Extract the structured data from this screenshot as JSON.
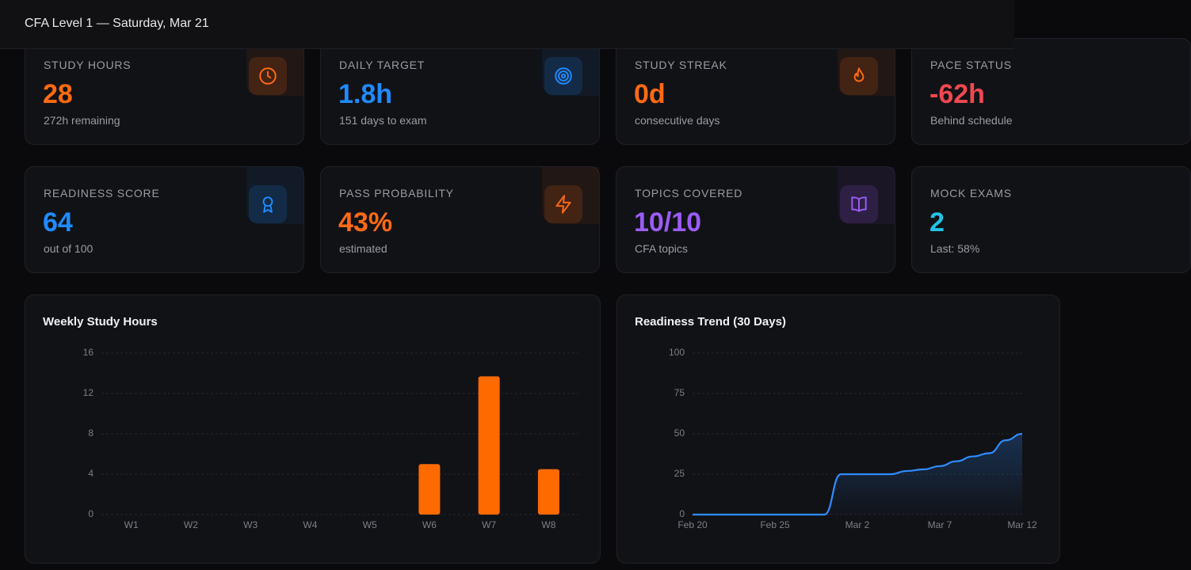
{
  "header": {
    "title": "CFA Level 1 — Saturday, Mar 21"
  },
  "cards": [
    {
      "label": "STUDY HOURS",
      "value": "28",
      "note": "272h remaining",
      "color": "#ff6a13"
    },
    {
      "label": "DAILY TARGET",
      "value": "1.8h",
      "note": "151 days to exam",
      "color": "#1f8bff"
    },
    {
      "label": "STUDY STREAK",
      "value": "0d",
      "note": "consecutive days",
      "color": "#ff6a13"
    },
    {
      "label": "PACE STATUS",
      "value": "-62h",
      "note": "Behind schedule",
      "color": "#f0484f"
    },
    {
      "label": "READINESS SCORE",
      "value": "64",
      "note": "out of 100",
      "color": "#1f8bff"
    },
    {
      "label": "PASS PROBABILITY",
      "value": "43%",
      "note": "estimated",
      "color": "#ff6a13"
    },
    {
      "label": "TOPICS COVERED",
      "value": "10/10",
      "note": "CFA topics",
      "color": "#9b5cf6"
    },
    {
      "label": "MOCK EXAMS",
      "value": "2",
      "note": "Last: 58%",
      "color": "#22c3e6"
    }
  ],
  "chart_data": [
    {
      "type": "bar",
      "title": "Weekly Study Hours",
      "categories": [
        "W1",
        "W2",
        "W3",
        "W4",
        "W5",
        "W6",
        "W7",
        "W8"
      ],
      "values": [
        0,
        0,
        0,
        0,
        0,
        5,
        13.7,
        4.5
      ],
      "color": "#ff6a00",
      "ylim": [
        0,
        16
      ],
      "yticks": [
        0,
        4,
        8,
        12,
        16
      ],
      "grid": true
    },
    {
      "type": "line",
      "title": "Readiness Trend (30 Days)",
      "x": [
        "Feb 20",
        "Feb 21",
        "Feb 22",
        "Feb 23",
        "Feb 24",
        "Feb 25",
        "Feb 26",
        "Feb 27",
        "Feb 28",
        "Mar 1",
        "Mar 2",
        "Mar 3",
        "Mar 4",
        "Mar 5",
        "Mar 6",
        "Mar 7",
        "Mar 8",
        "Mar 9",
        "Mar 10",
        "Mar 11",
        "Mar 12"
      ],
      "values": [
        0,
        0,
        0,
        0,
        0,
        0,
        0,
        0,
        0,
        25,
        25,
        25,
        25,
        27,
        28,
        30,
        33,
        36,
        38,
        46,
        50
      ],
      "color": "#2f8cff",
      "ylim": [
        0,
        100
      ],
      "yticks": [
        0,
        25,
        50,
        75,
        100
      ],
      "xticks": [
        "Feb 20",
        "Feb 25",
        "Mar 2",
        "Mar 7",
        "Mar 12"
      ],
      "grid": true
    }
  ]
}
